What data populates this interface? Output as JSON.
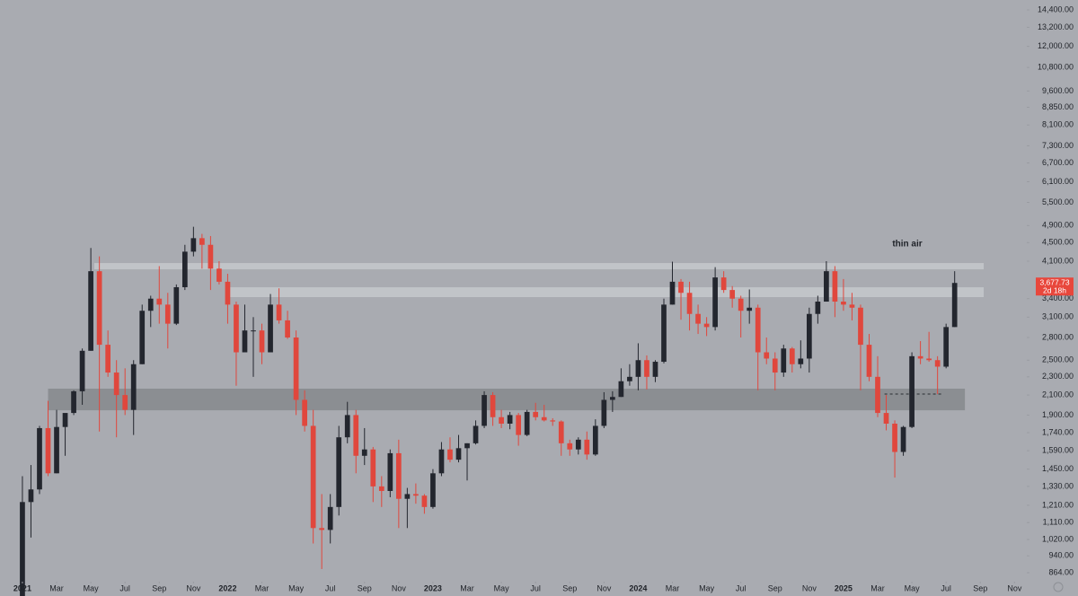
{
  "chart_data": {
    "type": "candlestick",
    "log_scale": true,
    "grid": false,
    "up_color": "#23262e",
    "down_color": "#e0473d",
    "xlim": [
      -1.31,
      58.56
    ],
    "ylim": [
      769,
      15130
    ],
    "x": [
      0,
      0.5,
      1,
      1.5,
      2,
      2.5,
      3,
      3.5,
      4,
      4.5,
      5,
      5.5,
      6,
      6.5,
      7,
      7.5,
      8,
      8.5,
      9,
      9.5,
      10,
      10.5,
      11,
      11.5,
      12,
      12.5,
      13,
      13.5,
      14,
      14.5,
      15,
      15.5,
      16,
      16.5,
      17,
      17.5,
      18,
      18.5,
      19,
      19.5,
      20,
      20.5,
      21,
      21.5,
      22,
      22.5,
      23,
      23.5,
      24,
      24.5,
      25,
      25.5,
      26,
      26.5,
      27,
      27.5,
      28,
      28.5,
      29,
      29.5,
      30,
      30.5,
      31,
      31.5,
      32,
      32.5,
      33,
      33.5,
      34,
      34.5,
      35,
      35.5,
      36,
      36.5,
      37,
      37.5,
      38,
      38.5,
      39,
      39.5,
      40,
      40.5,
      41,
      41.5,
      42,
      42.5,
      43,
      43.5,
      44,
      44.5,
      45,
      45.5,
      46,
      46.5,
      47,
      47.5,
      48,
      48.5,
      49,
      49.5,
      50,
      50.5,
      51,
      51.5,
      52,
      52.5,
      53,
      53.5,
      54,
      54.5
    ],
    "open": [
      730,
      1230,
      1310,
      1780,
      1420,
      1790,
      1920,
      2140,
      2620,
      3900,
      2700,
      2350,
      2100,
      1950,
      2450,
      3200,
      3400,
      3300,
      3000,
      3600,
      4300,
      4600,
      4450,
      3950,
      3700,
      3300,
      2600,
      2900,
      2900,
      2600,
      3300,
      3050,
      2800,
      2050,
      1800,
      1080,
      1070,
      1200,
      1700,
      1900,
      1550,
      1600,
      1330,
      1300,
      1570,
      1250,
      1280,
      1270,
      1200,
      1420,
      1600,
      1520,
      1610,
      1650,
      1800,
      2100,
      1880,
      1820,
      1900,
      1720,
      1930,
      1880,
      1850,
      1840,
      1650,
      1600,
      1680,
      1560,
      1800,
      2050,
      2080,
      2250,
      2300,
      2500,
      2300,
      2480,
      3300,
      3700,
      3500,
      3150,
      3000,
      2950,
      3780,
      3550,
      3400,
      3200,
      3250,
      2600,
      2520,
      2350,
      2650,
      2450,
      2520,
      3150,
      3350,
      3900,
      3350,
      3300,
      3250,
      2700,
      2300,
      1920,
      1820,
      1580,
      1790,
      2550,
      2520,
      2500,
      2420,
      2950
    ],
    "high": [
      1400,
      1480,
      1800,
      2040,
      1950,
      1840,
      2150,
      2650,
      4380,
      4200,
      2900,
      2500,
      2400,
      2500,
      3300,
      3450,
      4000,
      3500,
      3650,
      4450,
      4870,
      4700,
      4650,
      4100,
      3850,
      3350,
      3300,
      3100,
      3000,
      3480,
      3580,
      3200,
      2900,
      2150,
      1950,
      1280,
      1280,
      1800,
      2030,
      1950,
      1780,
      1620,
      1400,
      1600,
      1680,
      1320,
      1350,
      1280,
      1450,
      1660,
      1700,
      1720,
      1650,
      1850,
      2140,
      2130,
      1950,
      1930,
      1920,
      1950,
      2020,
      2000,
      1870,
      1850,
      1680,
      1700,
      1750,
      1860,
      2130,
      2140,
      2400,
      2450,
      2720,
      2560,
      2500,
      3400,
      4090,
      3750,
      3700,
      3300,
      3100,
      3980,
      3900,
      3620,
      3450,
      3560,
      3300,
      2800,
      2600,
      2700,
      2670,
      2760,
      3250,
      3450,
      4100,
      4000,
      3750,
      3500,
      3300,
      2850,
      2550,
      2100,
      1850,
      1800,
      2600,
      2750,
      2880,
      2550,
      3000,
      3900
    ],
    "low": [
      720,
      1030,
      1280,
      1400,
      1420,
      1550,
      1900,
      2000,
      2620,
      1750,
      2300,
      1700,
      1900,
      1720,
      2450,
      2950,
      3000,
      2650,
      2980,
      3550,
      4200,
      3950,
      3550,
      3650,
      3000,
      2200,
      2600,
      2300,
      2450,
      2600,
      3000,
      2780,
      1900,
      1750,
      1000,
      880,
      1000,
      1150,
      1650,
      1420,
      1480,
      1230,
      1200,
      1260,
      1080,
      1080,
      1220,
      1160,
      1190,
      1400,
      1500,
      1500,
      1370,
      1640,
      1780,
      1800,
      1780,
      1770,
      1630,
      1710,
      1850,
      1840,
      1800,
      1550,
      1550,
      1560,
      1520,
      1550,
      1780,
      1930,
      2080,
      2200,
      2150,
      2160,
      2240,
      2460,
      3300,
      3060,
      2900,
      2850,
      2820,
      2900,
      3500,
      3250,
      2800,
      3000,
      2150,
      2450,
      2150,
      2300,
      2350,
      2400,
      2350,
      3000,
      3350,
      3100,
      3200,
      3050,
      2150,
      2250,
      1880,
      1760,
      1390,
      1550,
      1780,
      2450,
      2480,
      2110,
      2400,
      2950
    ],
    "close": [
      1230,
      1310,
      1780,
      1420,
      1790,
      1920,
      2140,
      2620,
      3900,
      2700,
      2350,
      2100,
      1950,
      2450,
      3200,
      3400,
      3300,
      3000,
      3600,
      4300,
      4600,
      4450,
      3950,
      3700,
      3300,
      2600,
      2900,
      2900,
      2600,
      3300,
      3050,
      2800,
      2050,
      1800,
      1080,
      1070,
      1200,
      1700,
      1900,
      1550,
      1600,
      1330,
      1300,
      1570,
      1250,
      1280,
      1270,
      1200,
      1420,
      1600,
      1520,
      1610,
      1650,
      1800,
      2100,
      1880,
      1820,
      1900,
      1720,
      1930,
      1880,
      1850,
      1840,
      1650,
      1600,
      1680,
      1560,
      1800,
      2050,
      2080,
      2250,
      2300,
      2500,
      2300,
      2480,
      3300,
      3700,
      3500,
      3150,
      3000,
      2950,
      3780,
      3550,
      3400,
      3200,
      3250,
      2600,
      2520,
      2350,
      2650,
      2450,
      2520,
      3150,
      3350,
      3900,
      3350,
      3300,
      3250,
      2700,
      2300,
      1920,
      1820,
      1580,
      1790,
      2550,
      2520,
      2500,
      2420,
      2950,
      3677.73
    ],
    "xticks": [
      {
        "value": 0,
        "label": "2021"
      },
      {
        "value": 2,
        "label": "Mar"
      },
      {
        "value": 4,
        "label": "May"
      },
      {
        "value": 6,
        "label": "Jul"
      },
      {
        "value": 8,
        "label": "Sep"
      },
      {
        "value": 10,
        "label": "Nov"
      },
      {
        "value": 12,
        "label": "2022"
      },
      {
        "value": 14,
        "label": "Mar"
      },
      {
        "value": 16,
        "label": "May"
      },
      {
        "value": 18,
        "label": "Jul"
      },
      {
        "value": 20,
        "label": "Sep"
      },
      {
        "value": 22,
        "label": "Nov"
      },
      {
        "value": 24,
        "label": "2023"
      },
      {
        "value": 26,
        "label": "Mar"
      },
      {
        "value": 28,
        "label": "May"
      },
      {
        "value": 30,
        "label": "Jul"
      },
      {
        "value": 32,
        "label": "Sep"
      },
      {
        "value": 34,
        "label": "Nov"
      },
      {
        "value": 36,
        "label": "2024"
      },
      {
        "value": 38,
        "label": "Mar"
      },
      {
        "value": 40,
        "label": "May"
      },
      {
        "value": 42,
        "label": "Jul"
      },
      {
        "value": 44,
        "label": "Sep"
      },
      {
        "value": 46,
        "label": "Nov"
      },
      {
        "value": 48,
        "label": "2025"
      },
      {
        "value": 50,
        "label": "Mar"
      },
      {
        "value": 52,
        "label": "May"
      },
      {
        "value": 54,
        "label": "Jul"
      },
      {
        "value": 56,
        "label": "Sep"
      },
      {
        "value": 58,
        "label": "Nov"
      }
    ],
    "yticks": [
      {
        "value": 14400,
        "label": "14,400.00"
      },
      {
        "value": 13200,
        "label": "13,200.00"
      },
      {
        "value": 12000,
        "label": "12,000.00"
      },
      {
        "value": 10800,
        "label": "10,800.00"
      },
      {
        "value": 9600,
        "label": "9,600.00"
      },
      {
        "value": 8850,
        "label": "8,850.00"
      },
      {
        "value": 8100,
        "label": "8,100.00"
      },
      {
        "value": 7300,
        "label": "7,300.00"
      },
      {
        "value": 6700,
        "label": "6,700.00"
      },
      {
        "value": 6100,
        "label": "6,100.00"
      },
      {
        "value": 5500,
        "label": "5,500.00"
      },
      {
        "value": 4900,
        "label": "4,900.00"
      },
      {
        "value": 4500,
        "label": "4,500.00"
      },
      {
        "value": 4100,
        "label": "4,100.00"
      },
      {
        "value": 3400,
        "label": "3,400.00"
      },
      {
        "value": 3100,
        "label": "3,100.00"
      },
      {
        "value": 2800,
        "label": "2,800.00"
      },
      {
        "value": 2500,
        "label": "2,500.00"
      },
      {
        "value": 2300,
        "label": "2,300.00"
      },
      {
        "value": 2100,
        "label": "2,100.00"
      },
      {
        "value": 1900,
        "label": "1,900.00"
      },
      {
        "value": 1740,
        "label": "1,740.00"
      },
      {
        "value": 1590,
        "label": "1,590.00"
      },
      {
        "value": 1450,
        "label": "1,450.00"
      },
      {
        "value": 1330,
        "label": "1,330.00"
      },
      {
        "value": 1210,
        "label": "1,210.00"
      },
      {
        "value": 1110,
        "label": "1,110.00"
      },
      {
        "value": 1020,
        "label": "1,020.00"
      },
      {
        "value": 940,
        "label": "940.00"
      },
      {
        "value": 864,
        "label": "864.00"
      }
    ],
    "zones": [
      {
        "low": 3936,
        "high": 4062,
        "x0": 4.2,
        "x1": 56.2,
        "color": "#c6c8cd"
      },
      {
        "low": 3426,
        "high": 3599,
        "x0": 12.1,
        "x1": 56.2,
        "color": "#c6c8cd"
      },
      {
        "low": 1946,
        "high": 2168,
        "x0": 1.5,
        "x1": 55.1,
        "color": "#86888d"
      }
    ],
    "levels": [
      {
        "value": 2110,
        "x0": 50.4,
        "x1": 53.8
      }
    ],
    "annotation": "thin air",
    "current_price": {
      "value": 3677.73,
      "label": "3,677.73"
    },
    "countdown": "2d 18h"
  }
}
